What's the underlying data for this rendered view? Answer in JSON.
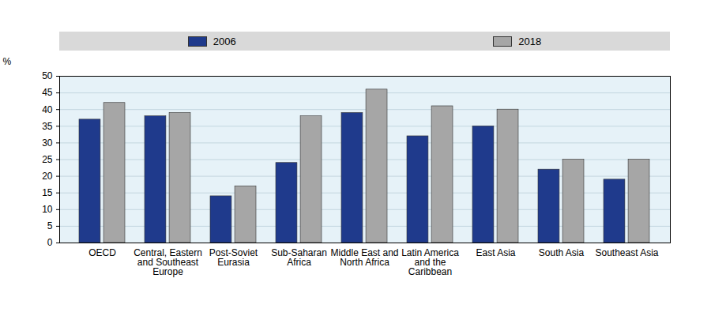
{
  "chart_data": {
    "type": "bar",
    "categories": [
      "OECD",
      "Central, Eastern\nand Southeast\nEurope",
      "Post-Soviet\nEurasia",
      "Sub-Saharan\nAfrica",
      "Middle East and\nNorth Africa",
      "Latin America\nand the\nCaribbean",
      "East Asia",
      "South Asia",
      "Southeast Asia"
    ],
    "series": [
      {
        "name": "2006",
        "color": "#1f3a8c",
        "values": [
          37,
          38,
          14,
          24,
          39,
          32,
          35,
          22,
          19
        ]
      },
      {
        "name": "2018",
        "color": "#a6a6a6",
        "values": [
          42,
          39,
          17,
          38,
          46,
          41,
          40,
          25,
          25
        ]
      }
    ],
    "ylabel": "%",
    "ylim": [
      0,
      50
    ],
    "yticks": [
      0,
      5,
      10,
      15,
      20,
      25,
      30,
      35,
      40,
      45,
      50
    ],
    "grid": true,
    "legend": "top"
  }
}
